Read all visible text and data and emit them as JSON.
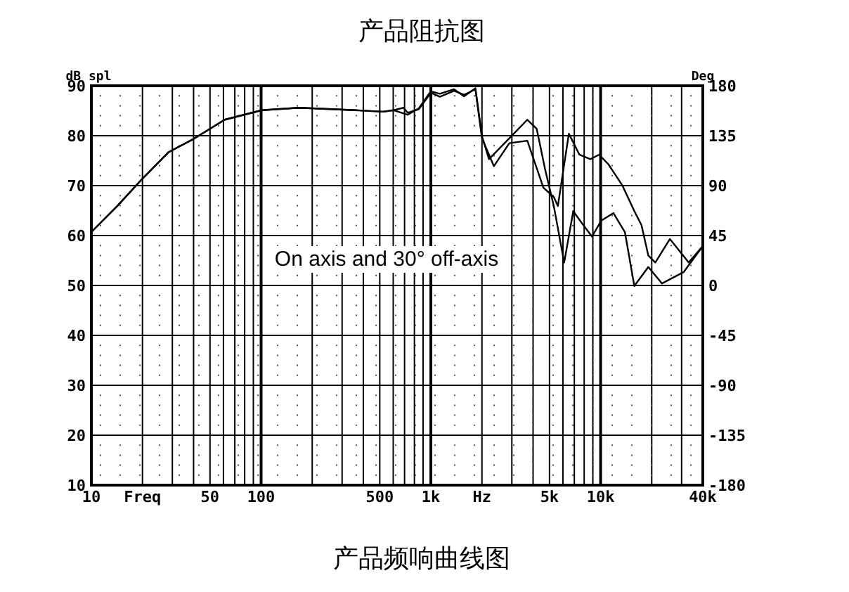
{
  "chart_data": {
    "type": "line",
    "title": "产品阻抗图",
    "ylabel": "dB spl",
    "y2label": "Deg",
    "annotations": [
      "On axis and 30° off-axis",
      "产品频响曲线图"
    ],
    "log": "x",
    "grid": true,
    "line_style": "solid",
    "xlim": [
      10,
      40000
    ],
    "xticks": [
      10,
      {
        "value": 20,
        "label": "Freq"
      },
      50,
      100,
      500,
      {
        "value": 1000,
        "label": "1k"
      },
      {
        "value": 2000,
        "label": "Hz"
      },
      {
        "value": 5000,
        "label": "5k"
      },
      {
        "value": 10000,
        "label": "10k"
      },
      {
        "value": 40000,
        "label": "40k"
      }
    ],
    "ylim": [
      10,
      90
    ],
    "yticks": [
      10,
      20,
      30,
      40,
      50,
      60,
      70,
      80,
      90
    ],
    "y2lim": [
      -180,
      180
    ],
    "y2ticks": [
      -180,
      -135,
      -90,
      -45,
      0,
      45,
      90,
      135,
      180
    ],
    "series": [
      {
        "color": "#000000",
        "x": [
          10,
          14.2,
          19.5,
          28.5,
          39.3,
          61,
          101,
          167,
          360,
          523,
          603,
          730,
          850,
          1000,
          1130,
          1370,
          1570,
          1830,
          2000,
          2200,
          2900,
          3700,
          4200,
          4700,
          5300,
          6100,
          6900,
          7900,
          8900,
          10100,
          11900,
          13900,
          15800,
          19100,
          23000,
          30900,
          40000
        ],
        "values": [
          60.7,
          65.9,
          71.0,
          76.7,
          79.2,
          83.2,
          85.1,
          85.6,
          85.1,
          84.8,
          85.1,
          84.2,
          85.5,
          88.9,
          88.4,
          89.3,
          87.9,
          89.5,
          79.9,
          75.3,
          79.5,
          83.2,
          81.4,
          73.4,
          65.9,
          54.6,
          64.9,
          62.1,
          59.8,
          63.0,
          64.5,
          60.7,
          49.9,
          53.7,
          50.4,
          52.7,
          57.9
        ]
      },
      {
        "color": "#000000",
        "x": [
          10,
          14.2,
          19.5,
          28.5,
          39.3,
          61,
          101,
          167,
          360,
          523,
          603,
          690,
          730,
          850,
          1000,
          1130,
          1370,
          1570,
          1830,
          2000,
          2350,
          2900,
          3700,
          4600,
          5300,
          5600,
          6500,
          7500,
          8700,
          9800,
          11100,
          13400,
          15800,
          17400,
          19100,
          21000,
          25600,
          29000,
          33000,
          40000
        ],
        "values": [
          60.7,
          65.9,
          71.0,
          76.7,
          79.2,
          83.2,
          85.1,
          85.6,
          85.1,
          84.8,
          85.1,
          85.6,
          84.6,
          85.3,
          88.6,
          87.8,
          89.0,
          88.2,
          89.3,
          79.5,
          73.9,
          78.5,
          79.0,
          69.6,
          67.7,
          65.9,
          80.4,
          76.2,
          75.3,
          76.2,
          74.3,
          70.1,
          64.9,
          62.1,
          56.0,
          54.6,
          59.3,
          57.0,
          54.6,
          57.9
        ]
      }
    ]
  }
}
